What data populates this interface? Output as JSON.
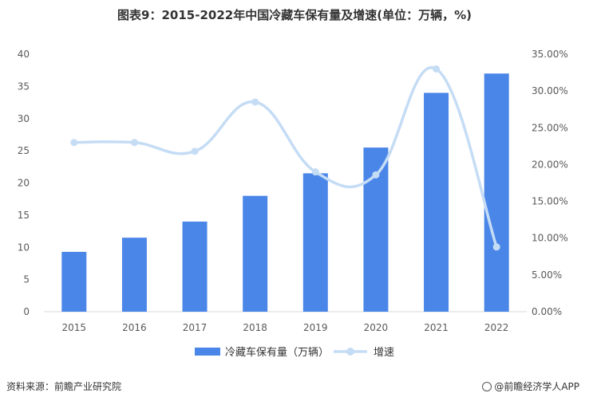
{
  "title": "图表9：2015-2022年中国冷藏车保有量及增速(单位：万辆，%)",
  "footer": {
    "source": "资料来源：前瞻产业研究院",
    "brand": "@前瞻经济学人APP"
  },
  "colors": {
    "bar": "#4a86e8",
    "line": "#c5dcf5",
    "axis": "#d9d9d9",
    "text": "#595959"
  },
  "chart_data": {
    "type": "bar",
    "categories": [
      "2015",
      "2016",
      "2017",
      "2018",
      "2019",
      "2020",
      "2021",
      "2022"
    ],
    "series": [
      {
        "name": "冷藏车保有量（万辆）",
        "type": "bar",
        "axis": "left",
        "values": [
          9.3,
          11.5,
          14.0,
          18.0,
          21.5,
          25.5,
          34.0,
          37.0
        ]
      },
      {
        "name": "增速",
        "type": "line",
        "axis": "right",
        "smooth": true,
        "values": [
          23.0,
          23.0,
          21.8,
          28.5,
          19.0,
          18.6,
          33.0,
          8.8
        ]
      }
    ],
    "y_left": {
      "range": [
        0,
        40
      ],
      "ticks": [
        "0",
        "5",
        "10",
        "15",
        "20",
        "25",
        "30",
        "35",
        "40"
      ]
    },
    "y_right": {
      "range": [
        0,
        35
      ],
      "ticks": [
        "0.00%",
        "5.00%",
        "10.00%",
        "15.00%",
        "20.00%",
        "25.00%",
        "30.00%",
        "35.00%"
      ]
    },
    "grid": false,
    "legend": "bottom"
  }
}
